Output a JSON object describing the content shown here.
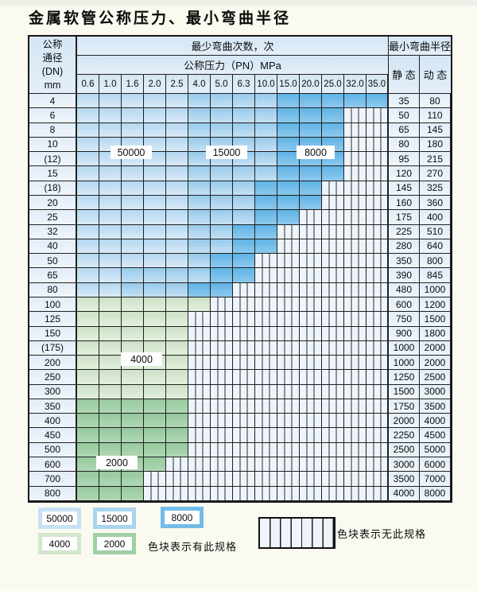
{
  "title": "金属软管公称压力、最小弯曲半径",
  "table": {
    "dn_header_lines": [
      "公称",
      "通径",
      "(DN)",
      "mm"
    ],
    "cycles_header": "最少弯曲次数，次",
    "pressure_header": "公称压力（PN）MPa",
    "radius_header": "最小弯曲半径",
    "static_header": "静 态",
    "dynamic_header": "动 态",
    "pressures": [
      "0.6",
      "1.0",
      "1.6",
      "2.0",
      "2.5",
      "4.0",
      "5.0",
      "6.3",
      "10.0",
      "15.0",
      "20.0",
      "25.0",
      "32.0",
      "35.0"
    ],
    "rows": [
      {
        "dn": "4",
        "static": "35",
        "dynamic": "80",
        "cells": [
          "50000",
          "50000",
          "50000",
          "50000",
          "50000",
          "15000",
          "15000",
          "15000",
          "15000",
          "8000",
          "8000",
          "8000",
          "8000",
          "8000"
        ]
      },
      {
        "dn": "6",
        "static": "50",
        "dynamic": "110",
        "cells": [
          "50000",
          "50000",
          "50000",
          "50000",
          "50000",
          "15000",
          "15000",
          "15000",
          "15000",
          "8000",
          "8000",
          "8000",
          "none",
          "none"
        ]
      },
      {
        "dn": "8",
        "static": "65",
        "dynamic": "145",
        "cells": [
          "50000",
          "50000",
          "50000",
          "50000",
          "50000",
          "15000",
          "15000",
          "15000",
          "15000",
          "8000",
          "8000",
          "8000",
          "none",
          "none"
        ]
      },
      {
        "dn": "10",
        "static": "80",
        "dynamic": "180",
        "cells": [
          "50000",
          "50000",
          "50000",
          "50000",
          "50000",
          "15000",
          "15000",
          "15000",
          "15000",
          "8000",
          "8000",
          "8000",
          "none",
          "none"
        ]
      },
      {
        "dn": "(12)",
        "static": "95",
        "dynamic": "215",
        "cells": [
          "50000",
          "50000",
          "50000",
          "50000",
          "50000",
          "15000",
          "15000",
          "15000",
          "15000",
          "8000",
          "8000",
          "8000",
          "none",
          "none"
        ]
      },
      {
        "dn": "15",
        "static": "120",
        "dynamic": "270",
        "cells": [
          "50000",
          "50000",
          "50000",
          "50000",
          "50000",
          "15000",
          "15000",
          "15000",
          "15000",
          "8000",
          "8000",
          "8000",
          "none",
          "none"
        ]
      },
      {
        "dn": "(18)",
        "static": "145",
        "dynamic": "325",
        "cells": [
          "50000",
          "50000",
          "50000",
          "50000",
          "50000",
          "15000",
          "15000",
          "15000",
          "8000",
          "8000",
          "8000",
          "none",
          "none",
          "none"
        ]
      },
      {
        "dn": "20",
        "static": "160",
        "dynamic": "360",
        "cells": [
          "50000",
          "50000",
          "50000",
          "50000",
          "50000",
          "15000",
          "15000",
          "15000",
          "8000",
          "8000",
          "8000",
          "none",
          "none",
          "none"
        ]
      },
      {
        "dn": "25",
        "static": "175",
        "dynamic": "400",
        "cells": [
          "50000",
          "50000",
          "50000",
          "50000",
          "50000",
          "15000",
          "15000",
          "15000",
          "8000",
          "8000",
          "none",
          "none",
          "none",
          "none"
        ]
      },
      {
        "dn": "32",
        "static": "225",
        "dynamic": "510",
        "cells": [
          "50000",
          "50000",
          "50000",
          "50000",
          "50000",
          "15000",
          "15000",
          "8000",
          "8000",
          "none",
          "none",
          "none",
          "none",
          "none"
        ]
      },
      {
        "dn": "40",
        "static": "280",
        "dynamic": "640",
        "cells": [
          "50000",
          "50000",
          "50000",
          "50000",
          "50000",
          "15000",
          "15000",
          "8000",
          "8000",
          "none",
          "none",
          "none",
          "none",
          "none"
        ]
      },
      {
        "dn": "50",
        "static": "350",
        "dynamic": "800",
        "cells": [
          "50000",
          "50000",
          "50000",
          "50000",
          "50000",
          "15000",
          "8000",
          "8000",
          "none",
          "none",
          "none",
          "none",
          "none",
          "none"
        ]
      },
      {
        "dn": "65",
        "static": "390",
        "dynamic": "845",
        "cells": [
          "50000",
          "50000",
          "15000",
          "15000",
          "15000",
          "15000",
          "8000",
          "8000",
          "none",
          "none",
          "none",
          "none",
          "none",
          "none"
        ]
      },
      {
        "dn": "80",
        "static": "480",
        "dynamic": "1000",
        "cells": [
          "50000",
          "50000",
          "15000",
          "15000",
          "15000",
          "8000",
          "8000",
          "none",
          "none",
          "none",
          "none",
          "none",
          "none",
          "none"
        ]
      },
      {
        "dn": "100",
        "static": "600",
        "dynamic": "1200",
        "cells": [
          "4000",
          "4000",
          "4000",
          "4000",
          "4000",
          "4000",
          "none",
          "none",
          "none",
          "none",
          "none",
          "none",
          "none",
          "none"
        ]
      },
      {
        "dn": "125",
        "static": "750",
        "dynamic": "1500",
        "cells": [
          "4000",
          "4000",
          "4000",
          "4000",
          "4000",
          "none",
          "none",
          "none",
          "none",
          "none",
          "none",
          "none",
          "none",
          "none"
        ]
      },
      {
        "dn": "150",
        "static": "900",
        "dynamic": "1800",
        "cells": [
          "4000",
          "4000",
          "4000",
          "4000",
          "4000",
          "none",
          "none",
          "none",
          "none",
          "none",
          "none",
          "none",
          "none",
          "none"
        ]
      },
      {
        "dn": "(175)",
        "static": "1000",
        "dynamic": "2000",
        "cells": [
          "4000",
          "4000",
          "4000",
          "4000",
          "4000",
          "none",
          "none",
          "none",
          "none",
          "none",
          "none",
          "none",
          "none",
          "none"
        ]
      },
      {
        "dn": "200",
        "static": "1000",
        "dynamic": "2000",
        "cells": [
          "4000",
          "4000",
          "4000",
          "4000",
          "4000",
          "none",
          "none",
          "none",
          "none",
          "none",
          "none",
          "none",
          "none",
          "none"
        ]
      },
      {
        "dn": "250",
        "static": "1250",
        "dynamic": "2500",
        "cells": [
          "4000",
          "4000",
          "4000",
          "4000",
          "4000",
          "none",
          "none",
          "none",
          "none",
          "none",
          "none",
          "none",
          "none",
          "none"
        ]
      },
      {
        "dn": "300",
        "static": "1500",
        "dynamic": "3000",
        "cells": [
          "4000",
          "4000",
          "4000",
          "4000",
          "4000",
          "none",
          "none",
          "none",
          "none",
          "none",
          "none",
          "none",
          "none",
          "none"
        ]
      },
      {
        "dn": "350",
        "static": "1750",
        "dynamic": "3500",
        "cells": [
          "2000",
          "2000",
          "2000",
          "2000",
          "2000",
          "none",
          "none",
          "none",
          "none",
          "none",
          "none",
          "none",
          "none",
          "none"
        ]
      },
      {
        "dn": "400",
        "static": "2000",
        "dynamic": "4000",
        "cells": [
          "2000",
          "2000",
          "2000",
          "2000",
          "2000",
          "none",
          "none",
          "none",
          "none",
          "none",
          "none",
          "none",
          "none",
          "none"
        ]
      },
      {
        "dn": "450",
        "static": "2250",
        "dynamic": "4500",
        "cells": [
          "2000",
          "2000",
          "2000",
          "2000",
          "2000",
          "none",
          "none",
          "none",
          "none",
          "none",
          "none",
          "none",
          "none",
          "none"
        ]
      },
      {
        "dn": "500",
        "static": "2500",
        "dynamic": "5000",
        "cells": [
          "2000",
          "2000",
          "2000",
          "2000",
          "2000",
          "none",
          "none",
          "none",
          "none",
          "none",
          "none",
          "none",
          "none",
          "none"
        ]
      },
      {
        "dn": "600",
        "static": "3000",
        "dynamic": "6000",
        "cells": [
          "2000",
          "2000",
          "2000",
          "2000",
          "none",
          "none",
          "none",
          "none",
          "none",
          "none",
          "none",
          "none",
          "none",
          "none"
        ]
      },
      {
        "dn": "700",
        "static": "3500",
        "dynamic": "7000",
        "cells": [
          "2000",
          "2000",
          "2000",
          "none",
          "none",
          "none",
          "none",
          "none",
          "none",
          "none",
          "none",
          "none",
          "none",
          "none"
        ]
      },
      {
        "dn": "800",
        "static": "4000",
        "dynamic": "8000",
        "cells": [
          "2000",
          "2000",
          "2000",
          "none",
          "none",
          "none",
          "none",
          "none",
          "none",
          "none",
          "none",
          "none",
          "none",
          "none"
        ]
      }
    ]
  },
  "region_labels": [
    {
      "text": "50000"
    },
    {
      "text": "15000"
    },
    {
      "text": "8000"
    },
    {
      "text": "4000"
    },
    {
      "text": "2000"
    }
  ],
  "legend": {
    "items": [
      {
        "value": "50000",
        "color": "#c6e0f4"
      },
      {
        "value": "15000",
        "color": "#a9d4ef"
      },
      {
        "value": "8000",
        "color": "#72bce7"
      },
      {
        "value": "4000",
        "color": "#d5e6cf"
      },
      {
        "value": "2000",
        "color": "#9ed0a5"
      }
    ],
    "has_spec_note": "色块表示有此规格",
    "no_spec_note": "色块表示无此规格"
  }
}
